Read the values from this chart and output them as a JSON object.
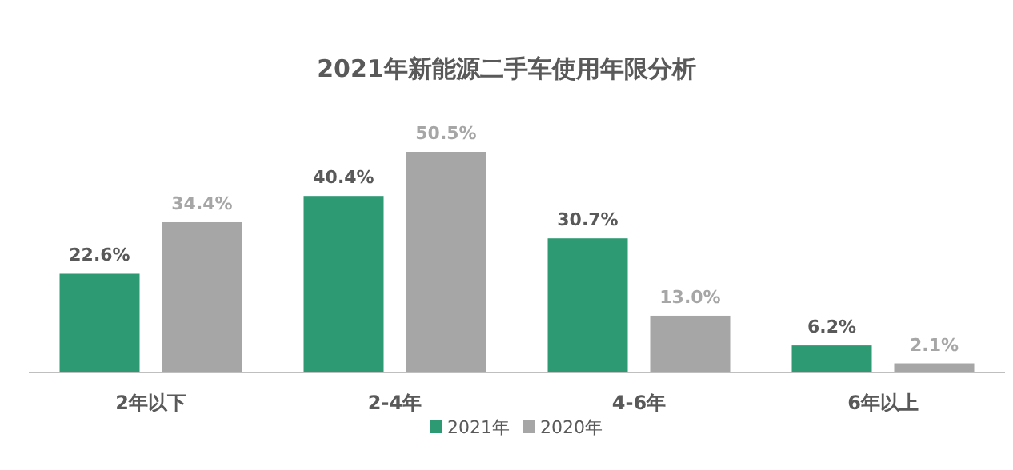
{
  "chart_data": {
    "type": "bar",
    "title": "2021年新能源二手车使用年限分析",
    "categories": [
      "2年以下",
      "2-4年",
      "4-6年",
      "6年以上"
    ],
    "series": [
      {
        "name": "2021年",
        "color": "#2e9a74",
        "values": [
          22.6,
          40.4,
          30.7,
          6.2
        ],
        "value_labels": [
          "22.6%",
          "40.4%",
          "30.7%",
          "6.2%"
        ]
      },
      {
        "name": "2020年",
        "color": "#a6a6a6",
        "values": [
          34.4,
          50.5,
          13.0,
          2.1
        ],
        "value_labels": [
          "34.4%",
          "50.5%",
          "13.0%",
          "2.1%"
        ]
      }
    ],
    "legend": "bottom"
  }
}
